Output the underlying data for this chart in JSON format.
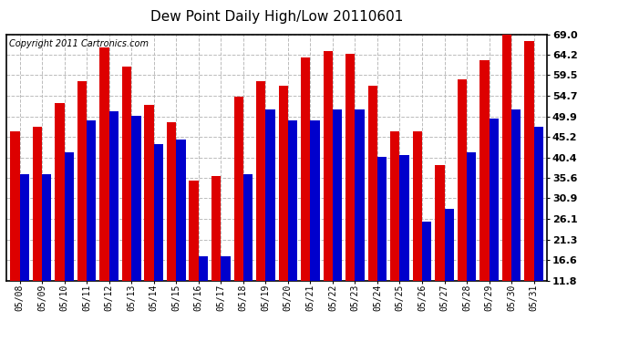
{
  "title": "Dew Point Daily High/Low 20110601",
  "copyright": "Copyright 2011 Cartronics.com",
  "dates": [
    "05/08",
    "05/09",
    "05/10",
    "05/11",
    "05/12",
    "05/13",
    "05/14",
    "05/15",
    "05/16",
    "05/17",
    "05/18",
    "05/19",
    "05/20",
    "05/21",
    "05/22",
    "05/23",
    "05/24",
    "05/25",
    "05/26",
    "05/27",
    "05/28",
    "05/29",
    "05/30",
    "05/31"
  ],
  "highs": [
    46.5,
    47.5,
    53.0,
    58.0,
    66.0,
    61.5,
    52.5,
    48.5,
    35.0,
    36.0,
    54.5,
    58.0,
    57.0,
    63.5,
    65.0,
    64.5,
    57.0,
    46.5,
    46.5,
    38.5,
    58.5,
    63.0,
    69.5,
    67.5
  ],
  "lows": [
    36.5,
    36.5,
    41.5,
    49.0,
    51.0,
    50.0,
    43.5,
    44.5,
    17.5,
    17.5,
    36.5,
    51.5,
    49.0,
    49.0,
    51.5,
    51.5,
    40.5,
    41.0,
    25.5,
    28.5,
    41.5,
    49.5,
    51.5,
    47.5
  ],
  "high_color": "#dd0000",
  "low_color": "#0000cc",
  "bg_color": "#ffffff",
  "grid_color": "#bbbbbb",
  "yticks": [
    11.8,
    16.6,
    21.3,
    26.1,
    30.9,
    35.6,
    40.4,
    45.2,
    49.9,
    54.7,
    59.5,
    64.2,
    69.0
  ],
  "ymin": 11.8,
  "ymax": 69.0,
  "title_fontsize": 11,
  "copyright_fontsize": 7,
  "xtick_fontsize": 7,
  "ytick_fontsize": 8
}
